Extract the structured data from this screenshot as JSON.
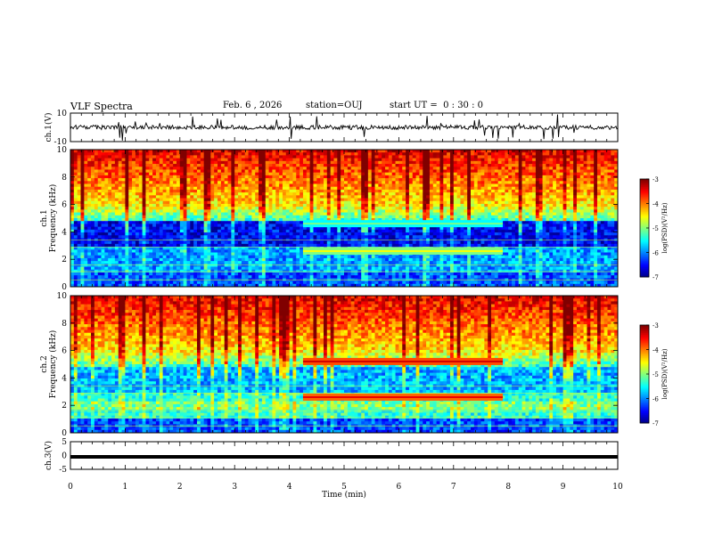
{
  "header": {
    "title": "VLF Spectra",
    "date": "Feb. 6 , 2026",
    "station": "station=OUJ",
    "start": "start UT =  0 : 30 : 0"
  },
  "chart_data": [
    {
      "type": "line",
      "panel": "ch1-waveform",
      "ylabel": "ch.1(V)",
      "ylim": [
        -10,
        10
      ],
      "yticks": [
        "10",
        "-10"
      ],
      "xlim": [
        0,
        10
      ],
      "baseline": 0,
      "color": "#000000"
    },
    {
      "type": "heatmap",
      "panel": "ch1-spectrogram",
      "ylabel": "ch.1\nFrequency (kHz)",
      "ylim": [
        0,
        10
      ],
      "yticks": [
        "0",
        "2",
        "4",
        "6",
        "8",
        "10"
      ],
      "xlim": [
        0,
        10
      ],
      "colorbar": {
        "label": "log(PSD)(V²/Hz)",
        "ticks": [
          "-3",
          "-4",
          "-5",
          "-6",
          "-7"
        ],
        "range": [
          -7,
          -3
        ]
      },
      "features": [
        {
          "kind": "band",
          "freq_khz": 4.6,
          "t_start_min": 4.25,
          "t_end_min": 7.9,
          "level": -5.5
        },
        {
          "kind": "band",
          "freq_khz": 2.6,
          "t_start_min": 4.25,
          "t_end_min": 7.9,
          "level": -5.0
        }
      ]
    },
    {
      "type": "heatmap",
      "panel": "ch2-spectrogram",
      "ylabel": "ch.2\nFrequency (kHz)",
      "ylim": [
        0,
        10
      ],
      "yticks": [
        "0",
        "2",
        "4",
        "6",
        "8",
        "10"
      ],
      "xlim": [
        0,
        10
      ],
      "colorbar": {
        "label": "log(PSD)(V²/Hz)",
        "ticks": [
          "-3",
          "-4",
          "-5",
          "-6",
          "-7"
        ],
        "range": [
          -7,
          -3
        ]
      },
      "features": [
        {
          "kind": "band",
          "freq_khz": 5.2,
          "t_start_min": 4.25,
          "t_end_min": 7.9,
          "level": -3.8
        },
        {
          "kind": "band",
          "freq_khz": 2.6,
          "t_start_min": 4.25,
          "t_end_min": 7.9,
          "level": -3.9
        }
      ]
    },
    {
      "type": "line",
      "panel": "ch3-waveform",
      "ylabel": "ch.3(V)",
      "ylim": [
        -5,
        5
      ],
      "yticks": [
        "5",
        "0",
        "-5"
      ],
      "xlim": [
        0,
        10
      ],
      "baseline": -0.5,
      "color": "#000000"
    }
  ],
  "xaxis": {
    "label": "Time (min)",
    "ticks": [
      "0",
      "1",
      "2",
      "3",
      "4",
      "5",
      "6",
      "7",
      "8",
      "9",
      "10"
    ]
  }
}
